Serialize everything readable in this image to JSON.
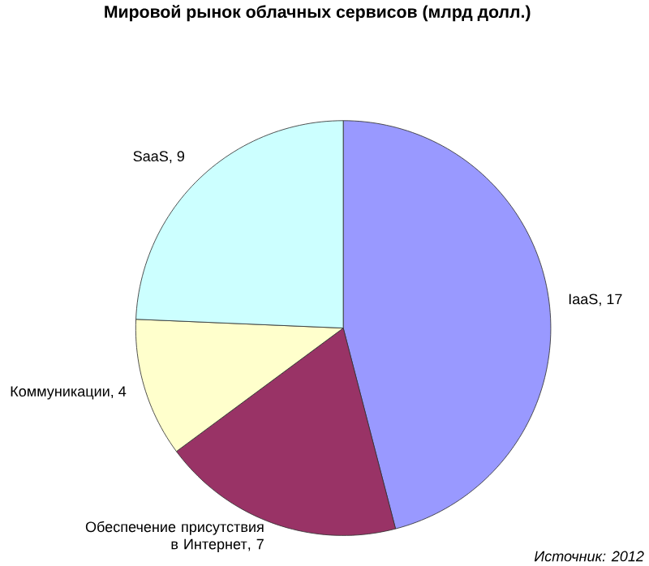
{
  "chart_data": {
    "type": "pie",
    "title": "Мировой рынок облачных сервисов (млрд долл.)",
    "categories": [
      "IaaS",
      "Обеспечение присутствия в Интернет",
      "Коммуникации",
      "SaaS"
    ],
    "values": [
      17,
      7,
      4,
      9
    ],
    "colors": [
      "#9999ff",
      "#993366",
      "#ffffcc",
      "#ccffff"
    ],
    "value_labels": [
      ", 17",
      ", 7",
      ", 4",
      ", 9"
    ],
    "annotations": [
      "Источник: 2012"
    ]
  }
}
